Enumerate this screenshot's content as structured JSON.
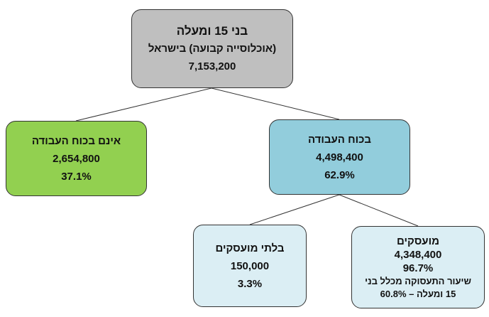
{
  "nodes": [
    {
      "lines": [
        "בני 15 ומעלה",
        "(אוכלוסייה קבועה) בישראל",
        "7,153,200"
      ]
    },
    {
      "lines": [
        "אינם בכוח העבודה",
        "2,654,800",
        "37.1%"
      ]
    },
    {
      "lines": [
        "בכוח העבודה",
        "4,498,400",
        "62.9%"
      ]
    },
    {
      "lines": [
        "בלתי מועסקים",
        "150,000",
        "3.3%"
      ]
    },
    {
      "lines": [
        "מועסקים",
        "4,348,400",
        "96.7%",
        "שיעור התעסוקה מכלל בני",
        "15 ומעלה – 60.8%"
      ]
    }
  ]
}
